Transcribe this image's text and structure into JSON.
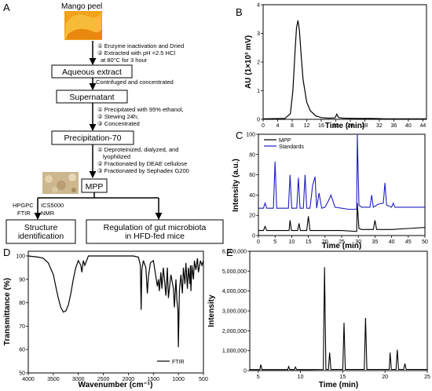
{
  "panel_labels": {
    "a": "A",
    "b": "B",
    "c": "C",
    "d": "D",
    "e": "E"
  },
  "flowchart": {
    "title": "Mango peel",
    "steps1": [
      "① Enzyme inactivation and Dried",
      "② Extracted with pH =2.5 HCl",
      "at 80°C for 3 hour"
    ],
    "box1": "Aqueous extract",
    "step2": "Contrifuged and concentrated",
    "box2": "Supernatant",
    "steps3": [
      "① Precipitated with 95% ethanol,",
      "② Stewing 24h;",
      "③ Concentrated"
    ],
    "box3": "Precipitation-70",
    "steps4": [
      "① Deproteinized, dialyzed, and",
      "lyophilized",
      "② Fractionated by DEAE cellulose",
      "③ Fractionated by Sephadex G200"
    ],
    "box4": "MPP",
    "methods_left": [
      "HPGPC",
      "FTIR"
    ],
    "methods_right": [
      "ICS5000",
      "NMR"
    ],
    "box5": "Structure\nidentification",
    "box6": "Regulation of gut microbiota\nin HFD-fed mice",
    "colors": {
      "mango": "#f2a21c",
      "powder": "#cdb78f"
    }
  },
  "chart_data": [
    {
      "panel": "B",
      "type": "line",
      "xlabel": "Time (min)",
      "ylabel": "AU (1×10³ mV)",
      "xlim": [
        0,
        45
      ],
      "ylim": [
        0,
        4
      ],
      "xticks": [
        0,
        4,
        8,
        12,
        16,
        20,
        24,
        28,
        32,
        36,
        40,
        44
      ],
      "yticks": [
        0,
        1,
        2,
        3,
        4
      ],
      "color": "#000000",
      "series": [
        {
          "x": [
            0,
            6,
            7.5,
            8.2,
            8.8,
            9.2,
            9.6,
            10.0,
            10.5,
            11.0,
            12.0,
            13.0,
            14.5,
            16,
            18,
            19.8,
            20.3,
            20.8,
            22,
            26,
            30,
            34,
            38,
            42,
            45
          ],
          "y": [
            0.02,
            0.03,
            0.2,
            1.0,
            2.4,
            3.2,
            3.45,
            3.1,
            2.2,
            1.4,
            0.6,
            0.3,
            0.12,
            0.06,
            0.04,
            0.05,
            0.18,
            0.06,
            0.04,
            0.03,
            0.03,
            0.02,
            0.02,
            0.02,
            0.02
          ]
        }
      ]
    },
    {
      "panel": "C",
      "type": "line",
      "xlabel": "Time (min)",
      "ylabel": "Intensity (a.u.)",
      "xlim": [
        0,
        50
      ],
      "ylim": [
        0,
        100
      ],
      "xticks": [
        0,
        5,
        10,
        15,
        20,
        25,
        30,
        35,
        40,
        45,
        50
      ],
      "yticks": [
        0,
        20,
        40,
        60,
        80,
        100
      ],
      "legend_position": "top-left",
      "series": [
        {
          "name": "MPP",
          "color": "#000000",
          "x": [
            0,
            1.5,
            2.0,
            2.5,
            4,
            9.2,
            9.5,
            9.9,
            11,
            11.8,
            12.2,
            12.6,
            14,
            14.5,
            15.0,
            15.5,
            17,
            20,
            25,
            29.5,
            29.7,
            30.2,
            31,
            34.5,
            35.0,
            35.5,
            37,
            40,
            45,
            50
          ],
          "y": [
            5,
            5,
            9,
            5,
            5,
            5,
            15,
            5,
            5,
            5,
            12,
            5,
            5,
            5,
            19,
            5,
            5,
            5,
            5,
            4,
            32,
            7,
            6,
            6,
            15,
            6,
            6,
            6,
            7,
            8
          ]
        },
        {
          "name": "Standards",
          "color": "#1f1fc0",
          "x": [
            0,
            1.5,
            2.0,
            2.5,
            4,
            4.5,
            5.0,
            5.5,
            7,
            9,
            9.5,
            10.0,
            10.5,
            11.5,
            12.0,
            12.5,
            13.5,
            14.0,
            14.5,
            15.5,
            16.3,
            17.0,
            17.5,
            18.2,
            19.0,
            20,
            21,
            21.8,
            23,
            25,
            27,
            29.5,
            29.7,
            30.2,
            31,
            33.5,
            34.0,
            34.5,
            36,
            37.5,
            38.0,
            38.5,
            40,
            40.5,
            41,
            45,
            50
          ],
          "y": [
            27,
            27,
            32,
            27,
            27,
            27,
            73,
            27,
            27,
            27,
            60,
            27,
            27,
            27,
            57,
            27,
            27,
            60,
            27,
            27,
            50,
            58,
            27,
            42,
            27,
            28,
            34,
            40,
            28,
            27,
            26,
            26,
            100,
            30,
            28,
            28,
            40,
            28,
            31,
            32,
            52,
            30,
            28,
            32,
            28,
            28,
            28
          ]
        }
      ]
    },
    {
      "panel": "D",
      "type": "line",
      "xlabel": "Wavenumber (cm⁻¹)",
      "ylabel": "Transmittance (%)",
      "xlim": [
        4000,
        500
      ],
      "ylim": [
        50,
        102
      ],
      "xticks": [
        4000,
        3500,
        3000,
        2500,
        2000,
        1500,
        1000,
        500
      ],
      "yticks": [
        50,
        60,
        70,
        80,
        90,
        100
      ],
      "legend_position": "bottom-right",
      "series": [
        {
          "name": "FTIR",
          "color": "#000000",
          "x": [
            4000,
            3800,
            3700,
            3600,
            3500,
            3450,
            3400,
            3350,
            3300,
            3250,
            3200,
            3150,
            3100,
            3050,
            3000,
            2950,
            2930,
            2900,
            2870,
            2800,
            2600,
            2400,
            2200,
            2000,
            1900,
            1800,
            1760,
            1745,
            1730,
            1700,
            1650,
            1620,
            1600,
            1560,
            1500,
            1450,
            1420,
            1400,
            1380,
            1350,
            1330,
            1300,
            1270,
            1250,
            1220,
            1200,
            1150,
            1100,
            1080,
            1050,
            1030,
            1010,
            1000,
            980,
            950,
            920,
            900,
            870,
            850,
            820,
            800,
            770,
            760,
            750,
            730,
            700,
            680,
            650,
            620,
            600,
            560,
            530,
            500
          ],
          "y": [
            100,
            99.5,
            99,
            97,
            92,
            87,
            82,
            78,
            76,
            76.5,
            79,
            84,
            90,
            95,
            98,
            96,
            93,
            98,
            96,
            100,
            100,
            100,
            100,
            100,
            100,
            99.5,
            96,
            77,
            94,
            98,
            95,
            84,
            91,
            97,
            98,
            91,
            87,
            90,
            85,
            93,
            86,
            95,
            88,
            83,
            95,
            82,
            92,
            86,
            78,
            90,
            81,
            77,
            61,
            85,
            92,
            84,
            95,
            88,
            97,
            86,
            95,
            88,
            96,
            85,
            96,
            90,
            98,
            94,
            99,
            93,
            98,
            96,
            98
          ]
        }
      ]
    },
    {
      "panel": "E",
      "type": "line",
      "xlabel": "Time (min)",
      "ylabel": "Intensity",
      "xlim": [
        4,
        25
      ],
      "ylim": [
        0,
        6000000
      ],
      "xticks": [
        5,
        10,
        15,
        20,
        25
      ],
      "yticks": [
        0,
        1000000,
        2000000,
        3000000,
        4000000,
        5000000,
        6000000
      ],
      "ytick_labels": [
        "0",
        "1,000,000",
        "2,000,000",
        "3,000,000",
        "4,000,000",
        "5,000,000",
        "6,000,000"
      ],
      "color": "#000000",
      "series": [
        {
          "x": [
            4,
            5.2,
            5.3,
            5.45,
            6,
            8.5,
            8.6,
            8.75,
            9.3,
            9.4,
            9.55,
            11,
            12.7,
            12.85,
            13.0,
            13.3,
            13.45,
            13.6,
            15,
            15.15,
            15.3,
            15.5,
            17.2,
            17.55,
            17.7,
            17.85,
            18.2,
            19.5,
            20.5,
            20.6,
            20.75,
            21.3,
            21.45,
            21.6,
            22,
            22.2,
            22.35,
            22.5,
            23,
            25
          ],
          "y": [
            50000,
            50000,
            300000,
            50000,
            50000,
            50000,
            200000,
            50000,
            50000,
            180000,
            50000,
            50000,
            60000,
            5200000,
            60000,
            60000,
            900000,
            60000,
            60000,
            2400000,
            60000,
            60000,
            60000,
            60000,
            2650000,
            60000,
            60000,
            60000,
            60000,
            900000,
            60000,
            60000,
            1050000,
            60000,
            60000,
            60000,
            350000,
            60000,
            60000,
            60000
          ]
        }
      ]
    }
  ]
}
